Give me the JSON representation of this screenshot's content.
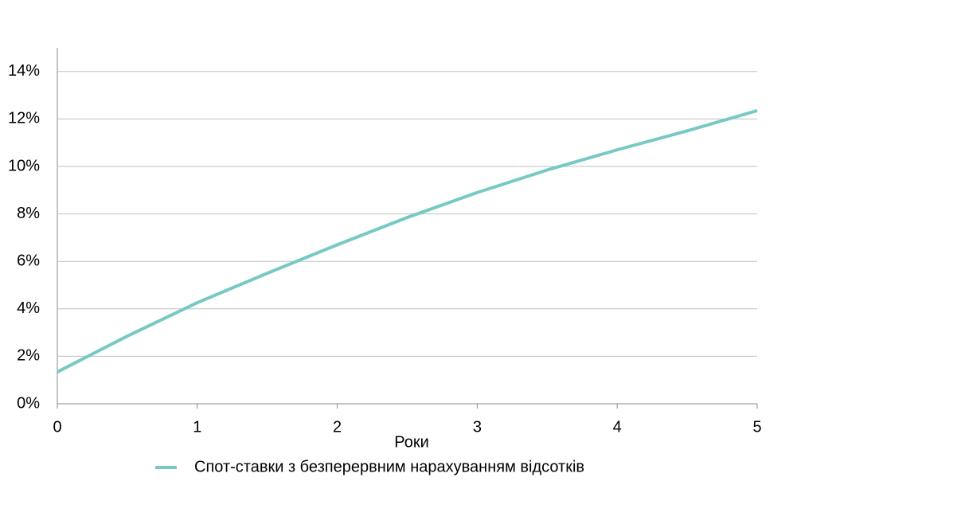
{
  "chart_data": {
    "type": "line",
    "x": [
      0,
      0.5,
      1,
      1.5,
      2,
      2.5,
      3,
      3.5,
      4,
      4.5,
      5
    ],
    "series": [
      {
        "name": "Спот-ставки з безперервним нарахуванням відсотків",
        "color": "#77c9c4",
        "values": [
          1.34,
          2.85,
          4.26,
          5.5,
          6.7,
          7.85,
          8.9,
          9.85,
          10.7,
          11.5,
          12.35
        ]
      }
    ],
    "xlabel": "Роки",
    "xlim": [
      0,
      5
    ],
    "xticks": [
      0,
      1,
      2,
      3,
      4,
      5
    ],
    "ylim": [
      0,
      15
    ],
    "yticks": [
      {
        "value": 0,
        "label": "0%"
      },
      {
        "value": 2,
        "label": "2%"
      },
      {
        "value": 4,
        "label": "4%"
      },
      {
        "value": 6,
        "label": "6%"
      },
      {
        "value": 8,
        "label": "8%"
      },
      {
        "value": 10,
        "label": "10%"
      },
      {
        "value": 12,
        "label": "12%"
      },
      {
        "value": 14,
        "label": "14%"
      }
    ],
    "grid": true
  }
}
